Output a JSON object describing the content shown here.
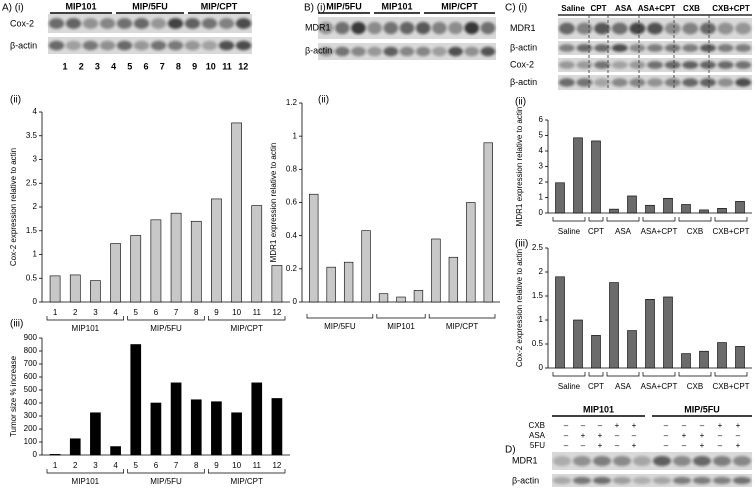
{
  "panel_labels": {
    "a1": "A) (i)",
    "a2": "(ii)",
    "a3": "(iii)",
    "b1": "B) (i)",
    "b2": "(ii)",
    "c1": "C) (i)",
    "c2": "(ii)",
    "c3": "(iii)",
    "d": "D)"
  },
  "blots": {
    "a": {
      "groups": [
        "MIP101",
        "MIP/5FU",
        "MIP/CPT"
      ],
      "rows": [
        "Cox-2",
        "β-actin"
      ],
      "lanes": [
        "1",
        "2",
        "3",
        "4",
        "5",
        "6",
        "7",
        "8",
        "9",
        "10",
        "11",
        "12"
      ]
    },
    "b": {
      "groups": [
        "MIP/5FU",
        "MIP101",
        "MIP/CPT"
      ],
      "rows": [
        "MDR1",
        "β-actin"
      ]
    },
    "c": {
      "groups": [
        "Saline",
        "CPT",
        "ASA",
        "ASA+CPT",
        "CXB",
        "CXB+CPT"
      ],
      "rows": [
        "MDR1",
        "β-actin",
        "Cox-2",
        "β-actin"
      ]
    },
    "d": {
      "groups": [
        "MIP101",
        "MIP/5FU"
      ],
      "treatments": [
        {
          "name": "CXB",
          "signs": [
            "–",
            "–",
            "–",
            "+",
            "+",
            "–",
            "–",
            "–",
            "+",
            "+"
          ]
        },
        {
          "name": "ASA",
          "signs": [
            "–",
            "+",
            "+",
            "–",
            "–",
            "–",
            "+",
            "+",
            "–",
            "–"
          ]
        },
        {
          "name": "5FU",
          "signs": [
            "–",
            "–",
            "+",
            "–",
            "+",
            "–",
            "–",
            "+",
            "–",
            "+"
          ]
        }
      ],
      "rows": [
        "MDR1",
        "β-actin"
      ]
    }
  },
  "chart_data": [
    {
      "type": "bar",
      "y_label": "Cox-2 expression relative to actin",
      "ylim": [
        0,
        4
      ],
      "yticks": [
        0,
        0.5,
        1,
        1.5,
        2,
        2.5,
        3,
        3.5,
        4
      ],
      "color": "#c8c8c8",
      "groups": [
        {
          "name": "MIP101",
          "categories": [
            "1",
            "2",
            "3",
            "4"
          ],
          "values": [
            0.55,
            0.57,
            0.45,
            1.23
          ]
        },
        {
          "name": "MIP/5FU",
          "categories": [
            "5",
            "6",
            "7",
            "8"
          ],
          "values": [
            1.4,
            1.73,
            1.87,
            1.7
          ]
        },
        {
          "name": "MIP/CPT",
          "categories": [
            "9",
            "10",
            "11",
            "12"
          ],
          "values": [
            2.17,
            3.77,
            2.03,
            0.77
          ]
        }
      ]
    },
    {
      "type": "bar",
      "y_label": "Tumor size % increase",
      "ylim": [
        0,
        900
      ],
      "yticks": [
        0,
        100,
        200,
        300,
        400,
        500,
        600,
        700,
        800,
        900
      ],
      "color": "#000000",
      "groups": [
        {
          "name": "MIP101",
          "categories": [
            "1",
            "2",
            "3",
            "4"
          ],
          "values": [
            5,
            125,
            325,
            65
          ]
        },
        {
          "name": "MIP/5FU",
          "categories": [
            "5",
            "6",
            "7",
            "8"
          ],
          "values": [
            850,
            400,
            555,
            425
          ]
        },
        {
          "name": "MIP/CPT",
          "categories": [
            "9",
            "10",
            "11",
            "12"
          ],
          "values": [
            410,
            325,
            555,
            435
          ]
        }
      ]
    },
    {
      "type": "bar",
      "y_label": "MDR1 expression relative to actin",
      "ylim": [
        0,
        1.2
      ],
      "yticks": [
        0,
        0.2,
        0.4,
        0.6,
        0.8,
        1,
        1.2
      ],
      "color": "#c8c8c8",
      "groups": [
        {
          "name": "MIP/5FU",
          "categories": [
            null,
            null,
            null,
            null
          ],
          "values": [
            0.65,
            0.21,
            0.24,
            0.43
          ]
        },
        {
          "name": "MIP101",
          "categories": [
            null,
            null,
            null
          ],
          "values": [
            0.05,
            0.03,
            0.07
          ]
        },
        {
          "name": "MIP/CPT",
          "categories": [
            null,
            null,
            null,
            null
          ],
          "values": [
            0.38,
            0.27,
            0.6,
            0.96
          ]
        }
      ]
    },
    {
      "type": "bar",
      "y_label": "MDR1 expression relative to actin",
      "ylim": [
        0,
        6
      ],
      "yticks": [
        0,
        1,
        2,
        3,
        4,
        5,
        6
      ],
      "color": "#6b6b6b",
      "groups": [
        {
          "name": "Saline",
          "categories": [
            null,
            null
          ],
          "values": [
            1.95,
            4.85
          ]
        },
        {
          "name": "CPT",
          "categories": [
            null
          ],
          "values": [
            4.65
          ]
        },
        {
          "name": "ASA",
          "categories": [
            null,
            null
          ],
          "values": [
            0.25,
            1.1
          ]
        },
        {
          "name": "ASA+CPT",
          "categories": [
            null,
            null
          ],
          "values": [
            0.5,
            0.95
          ]
        },
        {
          "name": "CXB",
          "categories": [
            null,
            null
          ],
          "values": [
            0.55,
            0.2
          ]
        },
        {
          "name": "CXB+CPT",
          "categories": [
            null,
            null
          ],
          "values": [
            0.3,
            0.75
          ]
        }
      ]
    },
    {
      "type": "bar",
      "y_label": "Cox-2 expression relative to actin",
      "ylim": [
        0,
        2.5
      ],
      "yticks": [
        0,
        0.5,
        1,
        1.5,
        2,
        2.5
      ],
      "color": "#6b6b6b",
      "groups": [
        {
          "name": "Saline",
          "categories": [
            null,
            null
          ],
          "values": [
            1.9,
            1.0
          ]
        },
        {
          "name": "CPT",
          "categories": [
            null
          ],
          "values": [
            0.68
          ]
        },
        {
          "name": "ASA",
          "categories": [
            null,
            null
          ],
          "values": [
            1.78,
            0.78
          ]
        },
        {
          "name": "ASA+CPT",
          "categories": [
            null,
            null
          ],
          "values": [
            1.43,
            1.48
          ]
        },
        {
          "name": "CXB",
          "categories": [
            null,
            null
          ],
          "values": [
            0.3,
            0.35
          ]
        },
        {
          "name": "CXB+CPT",
          "categories": [
            null,
            null
          ],
          "values": [
            0.53,
            0.45
          ]
        }
      ]
    }
  ]
}
